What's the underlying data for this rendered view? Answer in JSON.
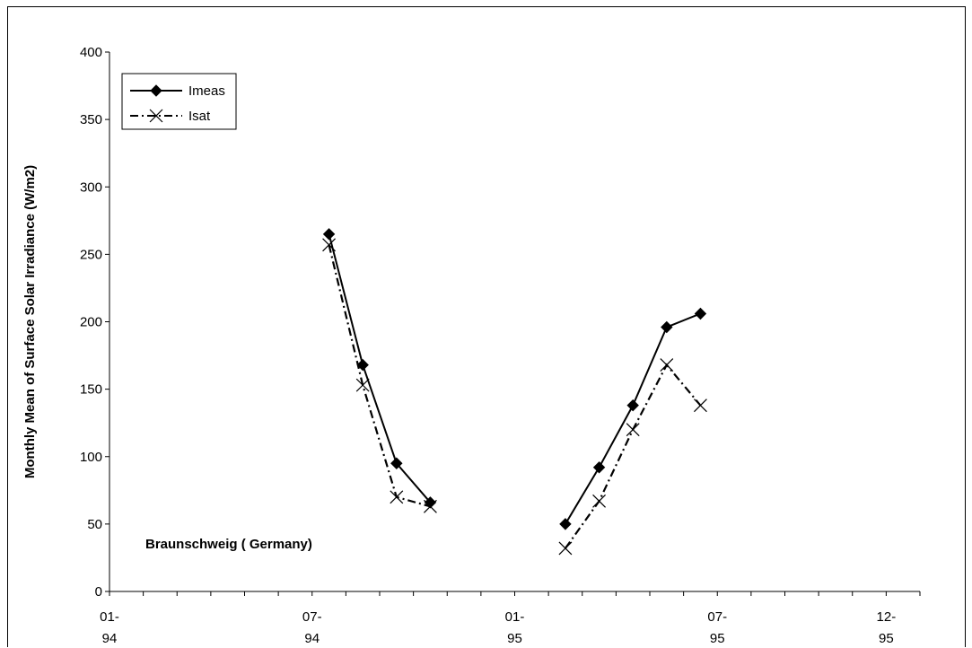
{
  "chart_data": {
    "type": "line",
    "title": "",
    "xlabel": "",
    "ylabel": "Monthly Mean of Surface Solar Irradiance (W/m2)",
    "ylim": [
      0,
      400
    ],
    "yticks": [
      0,
      50,
      100,
      150,
      200,
      250,
      300,
      350,
      400
    ],
    "xlim": [
      "1994-01",
      "1995-12"
    ],
    "xticks": [
      {
        "date": "1994-01",
        "label": [
          "01-",
          "94"
        ]
      },
      {
        "date": "1994-07",
        "label": [
          "07-",
          "94"
        ]
      },
      {
        "date": "1995-01",
        "label": [
          "01-",
          "95"
        ]
      },
      {
        "date": "1995-07",
        "label": [
          "07-",
          "95"
        ]
      },
      {
        "date": "1995-12",
        "label": [
          "12-",
          "95"
        ]
      }
    ],
    "grid": false,
    "legend": "top-left",
    "annotation": "Braunschweig ( Germany)",
    "series": [
      {
        "name": "Imeas",
        "color": "#000000",
        "marker": "diamond",
        "line": "solid",
        "segments": [
          {
            "x": [
              "1994-07",
              "1994-08",
              "1994-09",
              "1994-10"
            ],
            "y": [
              265,
              168,
              95,
              66
            ]
          },
          {
            "x": [
              "1995-02",
              "1995-03",
              "1995-04",
              "1995-05",
              "1995-06"
            ],
            "y": [
              50,
              92,
              138,
              196,
              206
            ]
          }
        ]
      },
      {
        "name": "Isat",
        "color": "#000000",
        "marker": "x",
        "line": "dashed",
        "segments": [
          {
            "x": [
              "1994-07",
              "1994-08",
              "1994-09",
              "1994-10"
            ],
            "y": [
              257,
              153,
              70,
              63
            ]
          },
          {
            "x": [
              "1995-02",
              "1995-03",
              "1995-04",
              "1995-05",
              "1995-06"
            ],
            "y": [
              32,
              67,
              120,
              168,
              138
            ]
          }
        ]
      }
    ]
  }
}
